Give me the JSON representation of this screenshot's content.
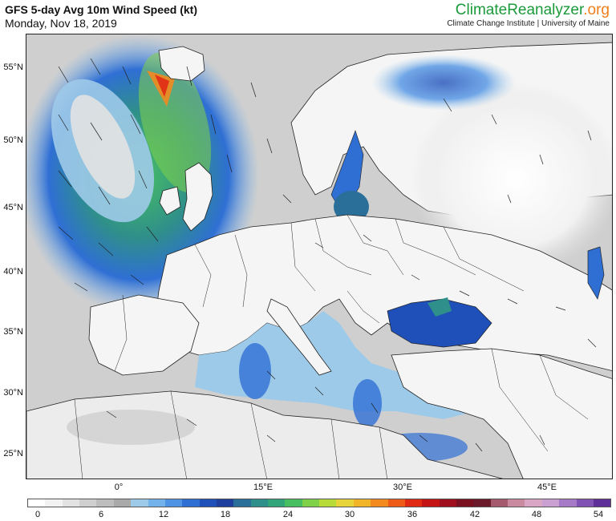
{
  "header": {
    "title": "GFS 5-day Avg 10m Wind Speed (kt)",
    "date": "Monday, Nov 18, 2019",
    "brand_part1": "Climate",
    "brand_part2": "Reanalyzer",
    "brand_part3": ".org",
    "affiliation": "Climate Change Institute | University of Maine"
  },
  "axes": {
    "latitude_labels": [
      "55°N",
      "50°N",
      "45°N",
      "40°N",
      "35°N",
      "30°N",
      "25°N"
    ],
    "longitude_labels": [
      "0°",
      "15°E",
      "30°E",
      "45°E"
    ]
  },
  "colorbar": {
    "tick_labels": [
      "0",
      "6",
      "12",
      "18",
      "24",
      "30",
      "36",
      "42",
      "48",
      "54"
    ],
    "colors": [
      "#ffffff",
      "#f2f2f2",
      "#e2e2e2",
      "#cfcfcf",
      "#bdbdbd",
      "#a9a9a9",
      "#9ecae9",
      "#74b2ec",
      "#4f93e4",
      "#2f6fd4",
      "#1f4fb8",
      "#1f3f9e",
      "#2a6f9a",
      "#2f8f8a",
      "#33a57a",
      "#48c061",
      "#7fd14a",
      "#b7dc3a",
      "#e6d43a",
      "#f2b52a",
      "#f28a1f",
      "#ee5a17",
      "#e02a14",
      "#c41414",
      "#a00f1e",
      "#7a1120",
      "#6b1a2c",
      "#a65a6e",
      "#c98aa0",
      "#d9a7c5",
      "#caa0d2",
      "#a77ac7",
      "#7f52b3",
      "#5e2f99"
    ]
  },
  "colors": {
    "ocean_calm": "#d7d7d7",
    "land": "#f5f5f5",
    "accent_green": "#1a9a3a",
    "accent_orange": "#ef7f1a"
  }
}
